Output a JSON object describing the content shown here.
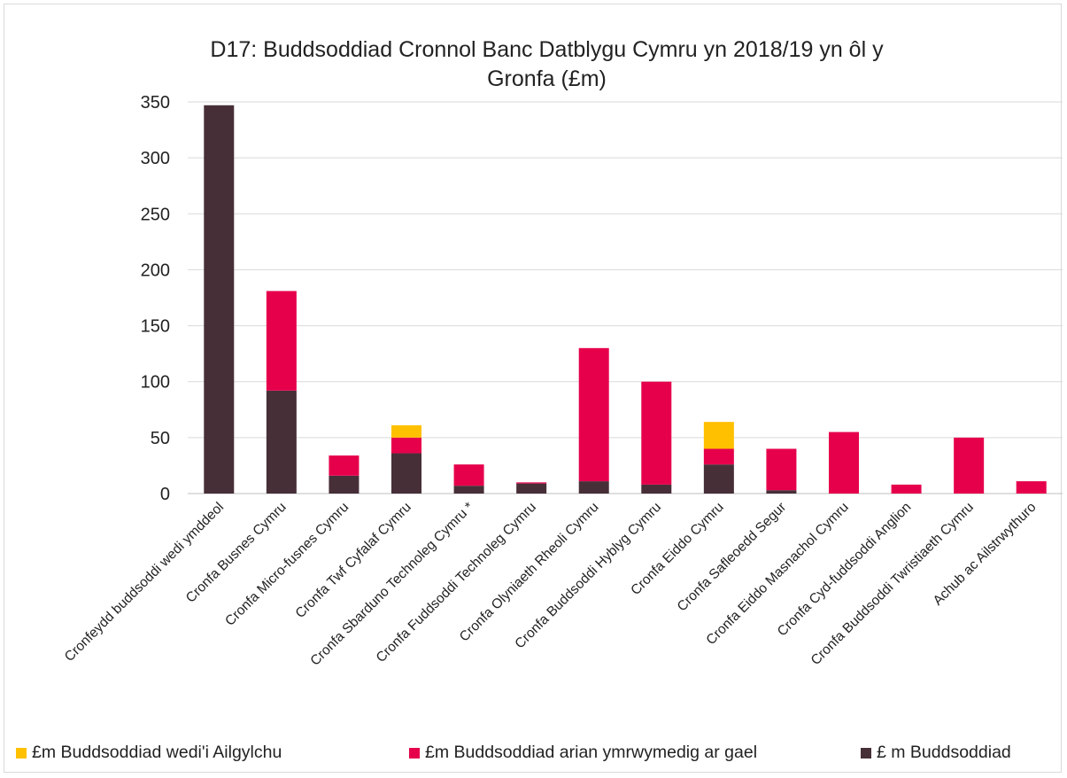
{
  "chart_data": {
    "type": "bar",
    "stacked": true,
    "title": "D17: Buddsoddiad Cronnol Banc Datblygu Cymru yn 2018/19 yn ôl y\nGronfa (£m)",
    "xlabel": "",
    "ylabel": "",
    "ylim": [
      0,
      350
    ],
    "yticks": [
      0,
      50,
      100,
      150,
      200,
      250,
      300,
      350
    ],
    "grid": true,
    "legend_position": "bottom",
    "categories": [
      "Cronfeydd buddsoddi wedi ymddeol",
      "Cronfa Busnes Cymru",
      "Cronfa Micro-fusnes Cymru",
      "Cronfa Twf Cyfalaf Cymru",
      "Cronfa Sbarduno Technoleg Cymru *",
      "Cronfa Fuddsoddi Technoleg Cymru",
      "Cronfa Olyniaeth Rheoli Cymru",
      "Cronfa Buddsoddi Hyblyg Cymru",
      "Cronfa Eiddo Cymru",
      "Cronfa Safleoedd Segur",
      "Cronfa Eiddo Masnachol Cymru",
      "Cronfa Cyd-fuddsoddi Anglion",
      "Cronfa Buddsoddi Twristiaeth Cymru",
      "Achub ac Ailstrwythuro"
    ],
    "series": [
      {
        "name": "£ m Buddsoddiad",
        "color": "#472f38",
        "values": [
          347,
          92,
          16,
          36,
          7,
          9,
          11,
          8,
          26,
          3,
          0,
          0,
          0,
          0
        ]
      },
      {
        "name": "£m Buddsoddiad arian ymrwymedig ar gael",
        "color": "#e6004c",
        "values": [
          0,
          89,
          18,
          14,
          19,
          1,
          119,
          92,
          14,
          37,
          55,
          8,
          50,
          11
        ]
      },
      {
        "name": "£m Buddsoddiad wedi'i Ailgylchu",
        "color": "#ffc000",
        "values": [
          0,
          0,
          0,
          11,
          0,
          0,
          0,
          0,
          24,
          0,
          0,
          0,
          0,
          0
        ]
      }
    ],
    "legend_order": [
      "£m Buddsoddiad wedi'i Ailgylchu",
      "£m Buddsoddiad arian ymrwymedig ar gael",
      "£ m Buddsoddiad"
    ]
  }
}
